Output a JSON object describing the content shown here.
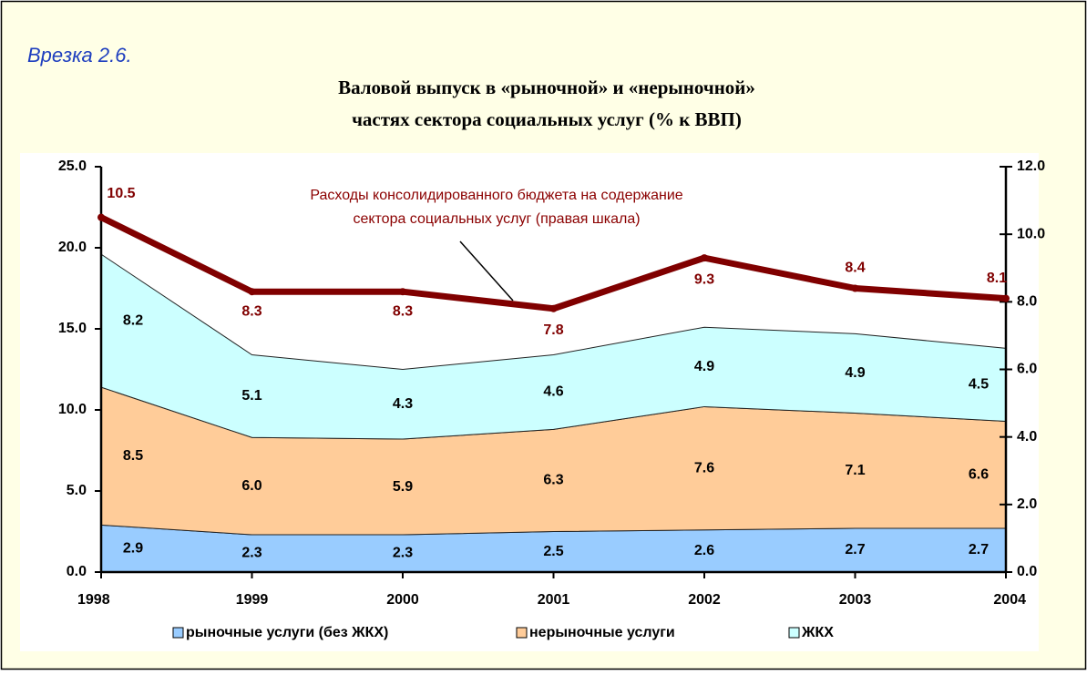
{
  "header": {
    "title": "Врезка 2.6."
  },
  "chart_data": {
    "type": "stacked_area_line",
    "title": [
      "Валовой выпуск в «рыночной» и «нерыночной»",
      "частях сектора социальных услуг (% к ВВП)"
    ],
    "categories": [
      "1998",
      "1999",
      "2000",
      "2001",
      "2002",
      "2003",
      "2004"
    ],
    "series": [
      {
        "name": "рыночные услуги (без ЖКХ)",
        "color": "#99ccff",
        "values": [
          2.9,
          2.3,
          2.3,
          2.5,
          2.6,
          2.7,
          2.7
        ],
        "value_labels": [
          "2.9",
          "2.3",
          "2.3",
          "2.5",
          "2.6",
          "2.7",
          "2.7"
        ]
      },
      {
        "name": "нерыночные услуги",
        "color": "#ffcc99",
        "values": [
          8.5,
          6.0,
          5.9,
          6.3,
          7.6,
          7.1,
          6.6
        ],
        "value_labels": [
          "8.5",
          "6.0",
          "5.9",
          "6.3",
          "7.6",
          "7.1",
          "6.6"
        ]
      },
      {
        "name": "ЖКХ",
        "color": "#ccffff",
        "values": [
          8.2,
          5.1,
          4.3,
          4.6,
          4.9,
          4.9,
          4.5
        ],
        "value_labels": [
          "8.2",
          "5.1",
          "4.3",
          "4.6",
          "4.9",
          "4.9",
          "4.5"
        ]
      },
      {
        "type": "line",
        "axis": "y2",
        "color": "#800000",
        "values": [
          10.5,
          8.3,
          8.3,
          7.8,
          9.3,
          8.4,
          8.1
        ],
        "value_labels": [
          "10.5",
          "8.3",
          "8.3",
          "7.8",
          "9.3",
          "8.4",
          "8.1"
        ]
      }
    ],
    "annotation": [
      "Расходы консолидированного бюджета на содержание",
      "сектора социальных услуг (правая шкала)"
    ],
    "ylim": [
      0,
      25
    ],
    "yticks": [
      {
        "value": 0,
        "label": "0.0"
      },
      {
        "value": 5,
        "label": "5.0"
      },
      {
        "value": 10,
        "label": "10.0"
      },
      {
        "value": 15,
        "label": "15.0"
      },
      {
        "value": 20,
        "label": "20.0"
      },
      {
        "value": 25,
        "label": "25.0"
      }
    ],
    "y2lim": [
      0,
      12
    ],
    "y2ticks": [
      {
        "value": 0,
        "label": "0.0"
      },
      {
        "value": 2,
        "label": "2.0"
      },
      {
        "value": 4,
        "label": "4.0"
      },
      {
        "value": 6,
        "label": "6.0"
      },
      {
        "value": 8,
        "label": "8.0"
      },
      {
        "value": 10,
        "label": "10.0"
      },
      {
        "value": 12,
        "label": "12.0"
      }
    ],
    "legend": "bottom"
  }
}
